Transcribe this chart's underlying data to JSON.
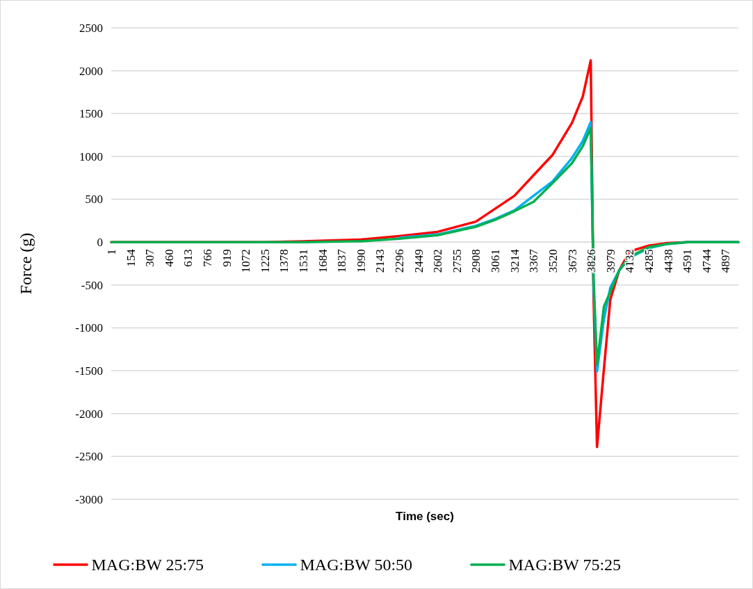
{
  "chart_data": {
    "type": "line",
    "xlabel": "Time (sec)",
    "ylabel": "Force (g)",
    "x": [
      1,
      1225,
      1531,
      1990,
      2296,
      2602,
      2908,
      3061,
      3214,
      3367,
      3520,
      3673,
      3760,
      3823,
      3845,
      3873,
      3928,
      3979,
      4050,
      4132,
      4285,
      4438,
      4591,
      5000
    ],
    "series": [
      {
        "name": "MAG:BW 25:75",
        "color": "#ff0000",
        "values": [
          0,
          0,
          10,
          30,
          70,
          120,
          240,
          390,
          540,
          780,
          1020,
          1390,
          1700,
          2120,
          -600,
          -2390,
          -1480,
          -670,
          -330,
          -110,
          -40,
          -10,
          0,
          0
        ]
      },
      {
        "name": "MAG:BW 50:50",
        "color": "#00b0f0",
        "values": [
          null,
          null,
          null,
          null,
          50,
          90,
          190,
          270,
          370,
          540,
          710,
          980,
          1180,
          1400,
          -500,
          -1510,
          -900,
          -530,
          -330,
          -180,
          -70,
          -20,
          0,
          0
        ]
      },
      {
        "name": "MAG:BW 75:25",
        "color": "#00b050",
        "values": [
          0,
          0,
          0,
          10,
          40,
          80,
          180,
          260,
          360,
          470,
          690,
          920,
          1120,
          1330,
          -400,
          -1430,
          -750,
          -580,
          -330,
          -170,
          -60,
          -20,
          0,
          0
        ]
      }
    ],
    "xlim": [
      1,
      5000
    ],
    "xticks": [
      1,
      154,
      307,
      460,
      613,
      766,
      919,
      1072,
      1225,
      1378,
      1531,
      1684,
      1837,
      1990,
      2143,
      2296,
      2449,
      2602,
      2755,
      2908,
      3061,
      3214,
      3367,
      3520,
      3673,
      3826,
      3979,
      4132,
      4285,
      4438,
      4591,
      4744,
      4897
    ],
    "ylim": [
      -3000,
      2500
    ],
    "yticks": [
      -3000,
      -2500,
      -2000,
      -1500,
      -1000,
      -500,
      0,
      500,
      1000,
      1500,
      2000,
      2500
    ],
    "grid": "y",
    "legend": "bottom",
    "line_style": "solid",
    "marker": "none"
  }
}
